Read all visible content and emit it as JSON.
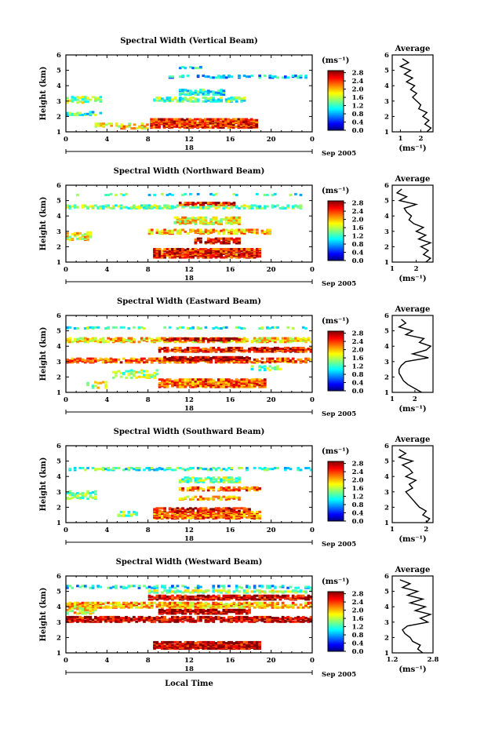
{
  "chart_data": {
    "type": "heatmap",
    "panels": [
      {
        "title": "Spectral Width (Vertical Beam)",
        "beam": "vertical",
        "ylabel": "Height (km)",
        "ylim": [
          1,
          6
        ],
        "yticks": [
          "1",
          "2",
          "3",
          "4",
          "5",
          "6"
        ],
        "xlim": [
          0,
          24
        ],
        "xticks": [
          "0",
          "4",
          "8",
          "12",
          "16",
          "20",
          "0"
        ],
        "date_labels": {
          "day": "18",
          "month_year": "Sep 2005"
        },
        "colorbar": {
          "unit": "(ms⁻¹)",
          "ticks": [
            "0.0",
            "0.4",
            "0.8",
            "1.2",
            "1.6",
            "2.0",
            "2.4",
            "2.8"
          ],
          "range": [
            0,
            2.9
          ]
        },
        "layers": [
          {
            "height": 1.55,
            "thickness": 0.55,
            "t0": 8.2,
            "t1": 18.6,
            "level": 2.5,
            "fill": 0.78
          },
          {
            "height": 1.4,
            "thickness": 0.35,
            "t0": 2.8,
            "t1": 8,
            "level": 1.9,
            "fill": 0.3
          },
          {
            "height": 3.1,
            "thickness": 0.25,
            "t0": 8.5,
            "t1": 17.5,
            "level": 1.3,
            "fill": 0.55
          },
          {
            "height": 3.6,
            "thickness": 0.35,
            "t0": 11,
            "t1": 15.5,
            "level": 1.1,
            "fill": 0.5
          },
          {
            "height": 4.6,
            "thickness": 0.15,
            "t0": 10,
            "t1": 23.5,
            "level": 0.9,
            "fill": 0.35
          },
          {
            "height": 3.1,
            "thickness": 0.4,
            "t0": 0,
            "t1": 3.5,
            "level": 1.5,
            "fill": 0.35
          },
          {
            "height": 2.2,
            "thickness": 0.2,
            "t0": 0,
            "t1": 3.5,
            "level": 1.2,
            "fill": 0.3
          },
          {
            "height": 5.2,
            "thickness": 0.1,
            "t0": 11,
            "t1": 13.5,
            "level": 1.0,
            "fill": 0.4
          }
        ],
        "average": {
          "title": "Average",
          "xlabel": "(ms⁻¹)",
          "xlim": [
            0.6,
            2.6
          ],
          "xticks": [
            {
              "value": 1,
              "label": "1"
            },
            {
              "value": 2,
              "label": "2"
            }
          ],
          "heights": [
            1.0,
            1.25,
            1.5,
            1.75,
            2.0,
            2.25,
            2.5,
            2.75,
            3.0,
            3.25,
            3.5,
            3.75,
            4.0,
            4.25,
            4.5,
            4.75,
            5.0,
            5.25,
            5.5,
            5.75
          ],
          "values": [
            2.3,
            2.5,
            2.2,
            2.4,
            2.1,
            2.3,
            1.9,
            2.0,
            1.8,
            1.6,
            1.8,
            1.5,
            1.7,
            1.3,
            1.6,
            1.2,
            1.5,
            1.0,
            1.4,
            1.1
          ]
        }
      },
      {
        "title": "Spectral Width (Northward Beam)",
        "beam": "northward",
        "ylabel": "Height (km)",
        "ylim": [
          1,
          6
        ],
        "yticks": [
          "1",
          "2",
          "3",
          "4",
          "5",
          "6"
        ],
        "xlim": [
          0,
          24
        ],
        "xticks": [
          "0",
          "4",
          "8",
          "12",
          "16",
          "20",
          "0"
        ],
        "date_labels": {
          "day": "18",
          "month_year": "Sep 2005"
        },
        "colorbar": {
          "unit": "(ms⁻¹)",
          "ticks": [
            "0.0",
            "0.4",
            "0.8",
            "1.2",
            "1.6",
            "2.0",
            "2.4",
            "2.8"
          ],
          "range": [
            0,
            2.9
          ]
        },
        "layers": [
          {
            "height": 1.6,
            "thickness": 0.6,
            "t0": 8.5,
            "t1": 19,
            "level": 2.5,
            "fill": 0.8
          },
          {
            "height": 2.4,
            "thickness": 0.35,
            "t0": 12.5,
            "t1": 17,
            "level": 2.6,
            "fill": 0.6
          },
          {
            "height": 3.0,
            "thickness": 0.3,
            "t0": 8,
            "t1": 20,
            "level": 2.0,
            "fill": 0.55
          },
          {
            "height": 3.7,
            "thickness": 0.45,
            "t0": 10.5,
            "t1": 17,
            "level": 1.8,
            "fill": 0.6
          },
          {
            "height": 4.6,
            "thickness": 0.2,
            "t0": 0,
            "t1": 23,
            "level": 1.4,
            "fill": 0.5
          },
          {
            "height": 4.8,
            "thickness": 0.15,
            "t0": 11,
            "t1": 16.5,
            "level": 2.5,
            "fill": 0.6
          },
          {
            "height": 2.7,
            "thickness": 0.5,
            "t0": 0,
            "t1": 2.5,
            "level": 1.8,
            "fill": 0.35
          },
          {
            "height": 5.4,
            "thickness": 0.08,
            "t0": 0.5,
            "t1": 23,
            "level": 1.2,
            "fill": 0.2
          }
        ],
        "average": {
          "title": "Average",
          "xlabel": "(ms⁻¹)",
          "xlim": [
            1.0,
            2.7
          ],
          "xticks": [
            {
              "value": 1,
              "label": "1"
            },
            {
              "value": 2,
              "label": "2"
            }
          ],
          "heights": [
            1.0,
            1.25,
            1.5,
            1.75,
            2.0,
            2.25,
            2.5,
            2.75,
            3.0,
            3.25,
            3.5,
            3.75,
            4.0,
            4.25,
            4.5,
            4.75,
            5.0,
            5.25,
            5.5,
            5.75
          ],
          "values": [
            2.4,
            2.6,
            2.3,
            2.5,
            2.2,
            2.6,
            2.1,
            2.4,
            2.0,
            2.3,
            1.9,
            1.7,
            1.8,
            1.6,
            1.5,
            2.0,
            1.3,
            1.6,
            1.2,
            1.4
          ]
        }
      },
      {
        "title": "Spectral Width (Eastward Beam)",
        "beam": "eastward",
        "ylabel": "Height (km)",
        "ylim": [
          1,
          6
        ],
        "yticks": [
          "1",
          "2",
          "3",
          "4",
          "5",
          "6"
        ],
        "xlim": [
          0,
          24
        ],
        "xticks": [
          "0",
          "4",
          "8",
          "12",
          "16",
          "20",
          "0"
        ],
        "date_labels": {
          "day": "18",
          "month_year": "Sep 2005"
        },
        "colorbar": {
          "unit": "(ms⁻¹)",
          "ticks": [
            "0.0",
            "0.4",
            "0.8",
            "1.2",
            "1.6",
            "2.0",
            "2.4",
            "2.8"
          ],
          "range": [
            0,
            2.9
          ]
        },
        "layers": [
          {
            "height": 1.6,
            "thickness": 0.5,
            "t0": 9,
            "t1": 19.5,
            "level": 2.3,
            "fill": 0.75
          },
          {
            "height": 3.1,
            "thickness": 0.3,
            "t0": 0,
            "t1": 24,
            "level": 2.3,
            "fill": 0.6
          },
          {
            "height": 3.2,
            "thickness": 0.2,
            "t0": 9.5,
            "t1": 18,
            "level": 2.8,
            "fill": 0.8
          },
          {
            "height": 3.8,
            "thickness": 0.3,
            "t0": 9,
            "t1": 24,
            "level": 2.5,
            "fill": 0.7
          },
          {
            "height": 4.4,
            "thickness": 0.25,
            "t0": 0,
            "t1": 24,
            "level": 1.9,
            "fill": 0.6
          },
          {
            "height": 4.45,
            "thickness": 0.15,
            "t0": 9.5,
            "t1": 17,
            "level": 2.7,
            "fill": 0.7
          },
          {
            "height": 5.2,
            "thickness": 0.08,
            "t0": 0,
            "t1": 23.5,
            "level": 1.2,
            "fill": 0.3
          },
          {
            "height": 2.2,
            "thickness": 0.5,
            "t0": 4.5,
            "t1": 9,
            "level": 1.5,
            "fill": 0.3
          },
          {
            "height": 1.5,
            "thickness": 0.4,
            "t0": 2,
            "t1": 4,
            "level": 1.6,
            "fill": 0.3
          },
          {
            "height": 2.6,
            "thickness": 0.3,
            "t0": 18,
            "t1": 21,
            "level": 1.4,
            "fill": 0.35
          }
        ],
        "average": {
          "title": "Average",
          "xlabel": "(ms⁻¹)",
          "xlim": [
            1.0,
            2.8
          ],
          "xticks": [
            {
              "value": 1,
              "label": "1"
            },
            {
              "value": 2,
              "label": "2"
            }
          ],
          "heights": [
            1.0,
            1.25,
            1.5,
            1.75,
            2.0,
            2.25,
            2.5,
            2.75,
            3.0,
            3.25,
            3.5,
            3.75,
            4.0,
            4.25,
            4.5,
            4.75,
            5.0,
            5.25,
            5.5,
            5.75
          ],
          "values": [
            2.3,
            2.0,
            1.7,
            1.5,
            1.4,
            1.3,
            1.3,
            1.4,
            1.6,
            2.6,
            1.9,
            2.5,
            2.7,
            2.2,
            2.4,
            1.6,
            1.9,
            1.3,
            1.6,
            1.4
          ]
        }
      },
      {
        "title": "Spectral Width (Southward Beam)",
        "beam": "southward",
        "ylabel": "Height (km)",
        "ylim": [
          1,
          6
        ],
        "yticks": [
          "1",
          "2",
          "3",
          "4",
          "5",
          "6"
        ],
        "xlim": [
          0,
          24
        ],
        "xticks": [
          "0",
          "4",
          "8",
          "12",
          "16",
          "20",
          "0"
        ],
        "date_labels": {
          "day": "18",
          "month_year": "Sep 2005"
        },
        "colorbar": {
          "unit": "(ms⁻¹)",
          "ticks": [
            "0.0",
            "0.4",
            "0.8",
            "1.2",
            "1.6",
            "2.0",
            "2.4",
            "2.8"
          ],
          "range": [
            0,
            2.9
          ]
        },
        "layers": [
          {
            "height": 1.5,
            "thickness": 0.45,
            "t0": 8.5,
            "t1": 19,
            "level": 2.3,
            "fill": 0.75
          },
          {
            "height": 1.85,
            "thickness": 0.2,
            "t0": 8.5,
            "t1": 18,
            "level": 2.6,
            "fill": 0.6
          },
          {
            "height": 2.6,
            "thickness": 0.2,
            "t0": 11,
            "t1": 17,
            "level": 2.0,
            "fill": 0.5
          },
          {
            "height": 3.2,
            "thickness": 0.2,
            "t0": 11,
            "t1": 19,
            "level": 2.3,
            "fill": 0.5
          },
          {
            "height": 3.8,
            "thickness": 0.35,
            "t0": 11,
            "t1": 17,
            "level": 1.4,
            "fill": 0.5
          },
          {
            "height": 4.5,
            "thickness": 0.15,
            "t0": 0,
            "t1": 24,
            "level": 1.2,
            "fill": 0.4
          },
          {
            "height": 2.8,
            "thickness": 0.5,
            "t0": 0,
            "t1": 3,
            "level": 1.4,
            "fill": 0.35
          },
          {
            "height": 1.6,
            "thickness": 0.3,
            "t0": 5,
            "t1": 7,
            "level": 1.5,
            "fill": 0.3
          }
        ],
        "average": {
          "title": "Average",
          "xlabel": "(ms⁻¹)",
          "xlim": [
            1.0,
            2.2
          ],
          "xticks": [
            {
              "value": 1,
              "label": "1"
            },
            {
              "value": 2,
              "label": "2"
            }
          ],
          "heights": [
            1.0,
            1.25,
            1.5,
            1.75,
            2.0,
            2.25,
            2.5,
            2.75,
            3.0,
            3.25,
            3.5,
            3.75,
            4.0,
            4.25,
            4.5,
            4.75,
            5.0,
            5.25,
            5.5,
            5.75
          ],
          "values": [
            2.0,
            2.1,
            1.9,
            2.0,
            1.8,
            1.7,
            1.6,
            1.5,
            1.4,
            1.6,
            1.5,
            1.7,
            1.4,
            1.6,
            1.5,
            1.3,
            1.6,
            1.2,
            1.4,
            1.2
          ]
        }
      },
      {
        "title": "Spectral Width (Westward Beam)",
        "beam": "westward",
        "ylabel": "Height (km)",
        "ylim": [
          1,
          6
        ],
        "yticks": [
          "1",
          "2",
          "3",
          "4",
          "5",
          "6"
        ],
        "xlim": [
          0,
          24
        ],
        "xticks": [
          "0",
          "4",
          "8",
          "12",
          "16",
          "20",
          "0"
        ],
        "date_labels": {
          "day": "18",
          "month_year": "Sep 2005"
        },
        "xlabel": "Local Time",
        "colorbar": {
          "unit": "(ms⁻¹)",
          "ticks": [
            "0.0",
            "0.4",
            "0.8",
            "1.2",
            "1.6",
            "2.0",
            "2.4",
            "2.8"
          ],
          "range": [
            0,
            2.9
          ]
        },
        "layers": [
          {
            "height": 1.5,
            "thickness": 0.45,
            "t0": 8.5,
            "t1": 19,
            "level": 2.7,
            "fill": 0.85
          },
          {
            "height": 3.2,
            "thickness": 0.35,
            "t0": 0,
            "t1": 24,
            "level": 2.7,
            "fill": 0.7
          },
          {
            "height": 3.7,
            "thickness": 0.3,
            "t0": 9,
            "t1": 18,
            "level": 2.8,
            "fill": 0.75
          },
          {
            "height": 4.1,
            "thickness": 0.3,
            "t0": 0,
            "t1": 24,
            "level": 2.0,
            "fill": 0.6
          },
          {
            "height": 4.6,
            "thickness": 0.25,
            "t0": 8,
            "t1": 24,
            "level": 2.7,
            "fill": 0.7
          },
          {
            "height": 5.0,
            "thickness": 0.15,
            "t0": 8,
            "t1": 24,
            "level": 1.5,
            "fill": 0.5
          },
          {
            "height": 5.3,
            "thickness": 0.15,
            "t0": 0,
            "t1": 24,
            "level": 1.0,
            "fill": 0.35
          },
          {
            "height": 3.8,
            "thickness": 0.5,
            "t0": 0,
            "t1": 3,
            "level": 1.8,
            "fill": 0.4
          }
        ],
        "average": {
          "title": "Average",
          "xlabel": "(ms⁻¹)",
          "xlim": [
            1.2,
            2.8
          ],
          "xticks": [
            {
              "value": 1.2,
              "label": "1.2"
            },
            {
              "value": 2.8,
              "label": "2.8"
            }
          ],
          "heights": [
            1.0,
            1.25,
            1.5,
            1.75,
            2.0,
            2.25,
            2.5,
            2.75,
            3.0,
            3.25,
            3.5,
            3.75,
            4.0,
            4.25,
            4.5,
            4.75,
            5.0,
            5.25,
            5.5,
            5.75
          ],
          "values": [
            2.4,
            2.2,
            2.3,
            2.0,
            1.9,
            1.7,
            1.6,
            1.8,
            2.6,
            2.3,
            2.7,
            2.1,
            2.5,
            1.9,
            2.4,
            1.8,
            2.2,
            1.6,
            1.9,
            1.5
          ]
        }
      }
    ]
  }
}
